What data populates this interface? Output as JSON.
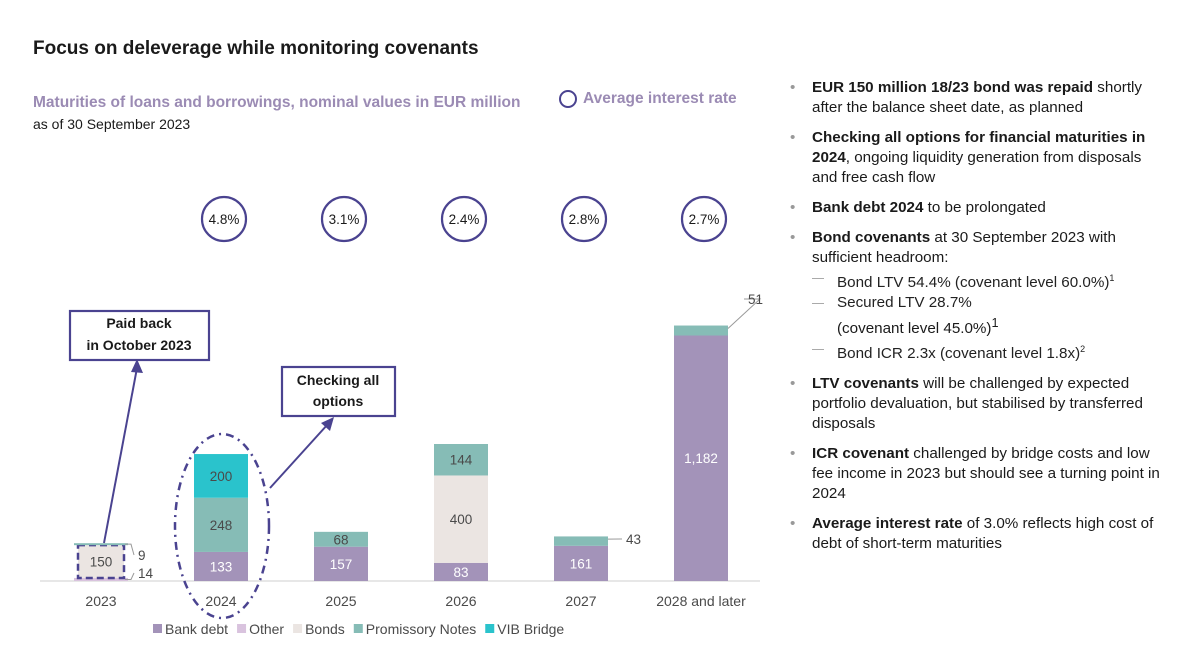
{
  "title": "Focus on deleverage while monitoring covenants",
  "subtitle": "Maturities of loans and borrowings, nominal values in EUR million",
  "as_of": "as of 30 September 2023",
  "avg_rate_legend": "Average interest rate",
  "chart_data": {
    "type": "bar",
    "stacked": true,
    "categories": [
      "2023",
      "2024",
      "2025",
      "2026",
      "2027",
      "2028 and later"
    ],
    "series": [
      {
        "name": "Bank debt",
        "color": "#a393b9",
        "values": [
          0,
          133,
          157,
          83,
          161,
          1182
        ]
      },
      {
        "name": "Other",
        "color": "#d9c3de",
        "values": [
          14,
          0,
          0,
          0,
          0,
          0
        ]
      },
      {
        "name": "Bonds",
        "color": "#ebe5e2",
        "values": [
          150,
          0,
          0,
          400,
          0,
          0
        ]
      },
      {
        "name": "Promissory Notes",
        "color": "#86bcb6",
        "values": [
          9,
          248,
          68,
          144,
          43,
          51
        ]
      },
      {
        "name": "VIB Bridge",
        "color": "#2ac3cc",
        "values": [
          0,
          200,
          0,
          0,
          0,
          0
        ]
      }
    ],
    "data_labels": [
      {
        "category": "2023",
        "series": "Bonds",
        "text": "150"
      },
      {
        "category": "2023",
        "series": "Promissory Notes",
        "text": "9",
        "callout": true
      },
      {
        "category": "2023",
        "series": "Other",
        "text": "14",
        "callout": true
      },
      {
        "category": "2024",
        "series": "Bank debt",
        "text": "133"
      },
      {
        "category": "2024",
        "series": "Promissory Notes",
        "text": "248"
      },
      {
        "category": "2024",
        "series": "VIB Bridge",
        "text": "200"
      },
      {
        "category": "2025",
        "series": "Bank debt",
        "text": "157"
      },
      {
        "category": "2025",
        "series": "Promissory Notes",
        "text": "68"
      },
      {
        "category": "2026",
        "series": "Bank debt",
        "text": "83"
      },
      {
        "category": "2026",
        "series": "Bonds",
        "text": "400"
      },
      {
        "category": "2026",
        "series": "Promissory Notes",
        "text": "144"
      },
      {
        "category": "2027",
        "series": "Bank debt",
        "text": "161"
      },
      {
        "category": "2027",
        "series": "Promissory Notes",
        "text": "43",
        "callout": true
      },
      {
        "category": "2028 and later",
        "series": "Bank debt",
        "text": "1,182"
      },
      {
        "category": "2028 and later",
        "series": "Promissory Notes",
        "text": "51",
        "callout": true
      }
    ],
    "avg_interest_rates": [
      "",
      "4.8%",
      "3.1%",
      "2.4%",
      "2.8%",
      "2.7%"
    ],
    "annotations": [
      {
        "text": "Paid back in October 2023",
        "lines": [
          "Paid back",
          "in October 2023"
        ],
        "target": "2023"
      },
      {
        "text": "Checking all options",
        "lines": [
          "Checking all",
          "options"
        ],
        "target": "2024"
      }
    ],
    "legend_position": "bottom",
    "grid": false
  },
  "bullets": [
    {
      "bold": "EUR 150 million 18/23 bond was repaid",
      "text": " shortly after the balance sheet date, as planned"
    },
    {
      "bold": "Checking all options for financial maturities in 2024",
      "text": ", ongoing liquidity generation from disposals and free cash flow"
    },
    {
      "bold": "Bank debt 2024",
      "text": " to be prolongated"
    },
    {
      "bold": "Bond covenants",
      "text": " at 30 September 2023 with sufficient headroom:",
      "sub": [
        {
          "text": "Bond LTV 54.4% (covenant level 60.0%)",
          "sup": "1"
        },
        {
          "text": "Secured LTV 28.7%",
          "sup": ""
        },
        {
          "text": "(covenant level 45.0%)",
          "sup": "1",
          "continuation": true
        },
        {
          "text": "Bond ICR 2.3x (covenant level 1.8x)",
          "sup": "2"
        }
      ]
    },
    {
      "bold": "LTV covenants",
      "text": " will be challenged by expected portfolio devaluation, but stabilised by transferred disposals"
    },
    {
      "bold": "ICR covenant",
      "text": " challenged by bridge costs and low fee income in 2023 but should see a turning point in 2024"
    },
    {
      "bold": "Average interest rate",
      "text": " of 3.0% reflects high cost of debt of short-term maturities"
    }
  ]
}
